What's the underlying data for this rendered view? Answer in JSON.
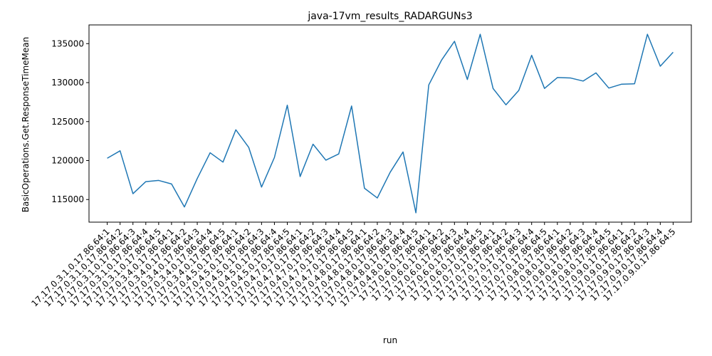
{
  "chart_data": {
    "type": "line",
    "title": "java-17vm_results_RADARGUNs3",
    "xlabel": "run",
    "ylabel": "BasicOperations.Get.ResponseTimeMean",
    "ylim": [
      112100,
      137400
    ],
    "yticks": [
      115000,
      120000,
      125000,
      130000,
      135000
    ],
    "ytick_labels": [
      "115000",
      "120000",
      "125000",
      "130000",
      "135000"
    ],
    "grid": false,
    "line_color": "#1f77b4",
    "categories": [
      "17.17.0.3.1.0.17.86.64:1",
      "17.17.0.3.1.0.17.86.64:2",
      "17.17.0.3.1.0.17.86.64:3",
      "17.17.0.3.1.0.17.86.64:4",
      "17.17.0.3.1.0.17.86.64:5",
      "17.17.0.3.4.0.17.86.64:1",
      "17.17.0.3.4.0.17.86.64:2",
      "17.17.0.3.4.0.17.86.64:3",
      "17.17.0.3.4.0.17.86.64:4",
      "17.17.0.3.4.0.17.86.64:5",
      "17.17.0.4.5.0.17.86.64:1",
      "17.17.0.4.5.0.17.86.64:2",
      "17.17.0.4.5.0.17.86.64:3",
      "17.17.0.4.5.0.17.86.64:4",
      "17.17.0.4.5.0.17.86.64:5",
      "17.17.0.4.7.0.17.86.64:1",
      "17.17.0.4.7.0.17.86.64:2",
      "17.17.0.4.7.0.17.86.64:3",
      "17.17.0.4.7.0.17.86.64:4",
      "17.17.0.4.7.0.17.86.64:5",
      "17.17.0.4.8.0.17.86.64:1",
      "17.17.0.4.8.0.17.86.64:2",
      "17.17.0.4.8.0.17.86.64:3",
      "17.17.0.4.8.0.17.86.64:4",
      "17.17.0.4.8.0.17.86.64:5",
      "17.17.0.6.0.17.86.64:1",
      "17.17.0.6.0.17.86.64:2",
      "17.17.0.6.0.17.86.64:3",
      "17.17.0.6.0.17.86.64:4",
      "17.17.0.6.0.17.86.64:5",
      "17.17.0.7.0.17.86.64:1",
      "17.17.0.7.0.17.86.64:2",
      "17.17.0.7.0.17.86.64:3",
      "17.17.0.7.0.17.86.64:4",
      "17.17.0.7.0.17.86.64:5",
      "17.17.0.8.0.17.86.64:1",
      "17.17.0.8.0.17.86.64:2",
      "17.17.0.8.0.17.86.64:3",
      "17.17.0.8.0.17.86.64:4",
      "17.17.0.8.0.17.86.64:5",
      "17.17.0.9.0.17.86.64:1",
      "17.17.0.9.0.17.86.64:2",
      "17.17.0.9.0.17.86.64:3",
      "17.17.0.9.0.17.86.64:4",
      "17.17.0.9.0.17.86.64:5"
    ],
    "values": [
      120300,
      121250,
      115750,
      117300,
      117450,
      117000,
      114050,
      117700,
      121000,
      119800,
      123950,
      121700,
      116600,
      120400,
      127100,
      117950,
      122100,
      120050,
      120850,
      127000,
      116450,
      115200,
      118500,
      121100,
      113300,
      129700,
      132900,
      135300,
      130400,
      136200,
      129250,
      127150,
      129000,
      133500,
      129250,
      130650,
      130600,
      130200,
      131250,
      129300,
      129800,
      129850,
      136200,
      132100,
      133900
    ]
  }
}
